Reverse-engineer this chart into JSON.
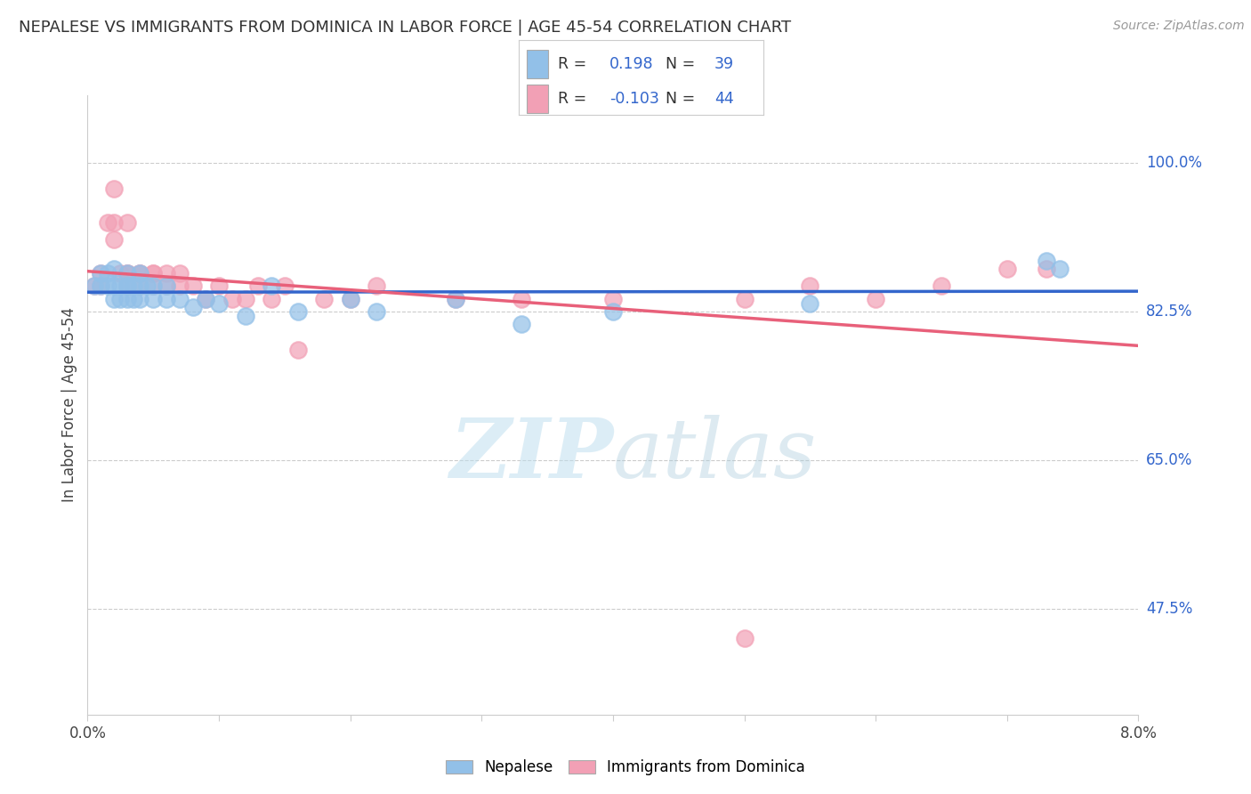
{
  "title": "NEPALESE VS IMMIGRANTS FROM DOMINICA IN LABOR FORCE | AGE 45-54 CORRELATION CHART",
  "source": "Source: ZipAtlas.com",
  "ylabel": "In Labor Force | Age 45-54",
  "ytick_labels": [
    "100.0%",
    "82.5%",
    "65.0%",
    "47.5%"
  ],
  "ytick_values": [
    1.0,
    0.825,
    0.65,
    0.475
  ],
  "xlim": [
    0.0,
    0.08
  ],
  "ylim": [
    0.35,
    1.08
  ],
  "r_nepalese": 0.198,
  "n_nepalese": 39,
  "r_dominica": -0.103,
  "n_dominica": 44,
  "blue_color": "#92C0E8",
  "pink_color": "#F2A0B5",
  "line_blue": "#3366CC",
  "line_pink": "#E8607A",
  "legend_label_1": "Nepalese",
  "legend_label_2": "Immigrants from Dominica",
  "watermark_zip": "ZIP",
  "watermark_atlas": "atlas",
  "nepalese_x": [
    0.0005,
    0.001,
    0.001,
    0.0015,
    0.0015,
    0.002,
    0.002,
    0.002,
    0.0025,
    0.0025,
    0.003,
    0.003,
    0.003,
    0.003,
    0.0035,
    0.0035,
    0.004,
    0.004,
    0.004,
    0.0045,
    0.005,
    0.005,
    0.006,
    0.006,
    0.007,
    0.008,
    0.009,
    0.01,
    0.012,
    0.014,
    0.016,
    0.02,
    0.022,
    0.028,
    0.033,
    0.04,
    0.055,
    0.073,
    0.074
  ],
  "nepalese_y": [
    0.855,
    0.855,
    0.87,
    0.855,
    0.87,
    0.855,
    0.84,
    0.875,
    0.855,
    0.84,
    0.855,
    0.84,
    0.87,
    0.855,
    0.84,
    0.855,
    0.87,
    0.84,
    0.855,
    0.855,
    0.84,
    0.855,
    0.84,
    0.855,
    0.84,
    0.83,
    0.84,
    0.835,
    0.82,
    0.855,
    0.825,
    0.84,
    0.825,
    0.84,
    0.81,
    0.825,
    0.835,
    0.885,
    0.875
  ],
  "dominica_x": [
    0.0005,
    0.001,
    0.001,
    0.0015,
    0.002,
    0.002,
    0.002,
    0.0025,
    0.003,
    0.003,
    0.003,
    0.003,
    0.004,
    0.004,
    0.004,
    0.005,
    0.005,
    0.005,
    0.006,
    0.006,
    0.007,
    0.007,
    0.008,
    0.009,
    0.01,
    0.011,
    0.012,
    0.013,
    0.014,
    0.015,
    0.016,
    0.018,
    0.02,
    0.022,
    0.028,
    0.033,
    0.04,
    0.05,
    0.055,
    0.06,
    0.065,
    0.07,
    0.073,
    0.05
  ],
  "dominica_y": [
    0.855,
    0.87,
    0.855,
    0.93,
    0.97,
    0.91,
    0.93,
    0.87,
    0.93,
    0.87,
    0.855,
    0.87,
    0.87,
    0.855,
    0.87,
    0.87,
    0.855,
    0.87,
    0.87,
    0.855,
    0.855,
    0.87,
    0.855,
    0.84,
    0.855,
    0.84,
    0.84,
    0.855,
    0.84,
    0.855,
    0.78,
    0.84,
    0.84,
    0.855,
    0.84,
    0.84,
    0.84,
    0.84,
    0.855,
    0.84,
    0.855,
    0.875,
    0.875,
    0.44
  ]
}
